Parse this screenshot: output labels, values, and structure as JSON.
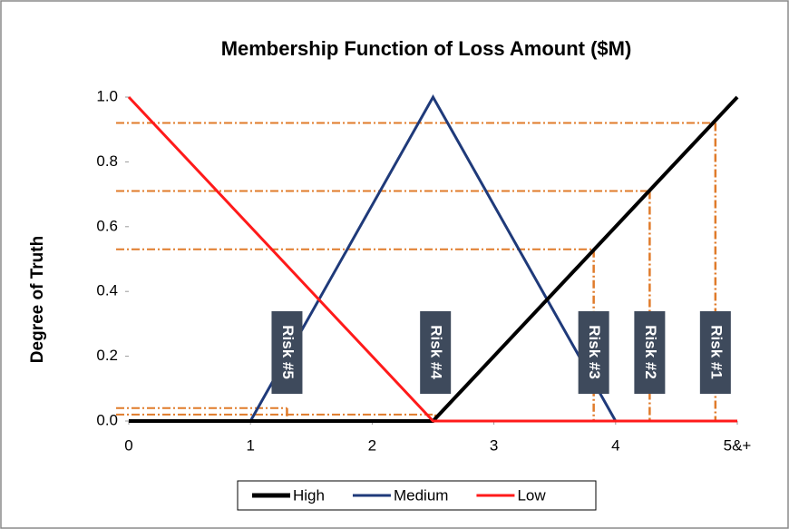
{
  "chart_data": {
    "type": "line",
    "title": "Membership Function of Loss Amount ($M)",
    "ylabel": "Degree of Truth",
    "xlim": [
      0,
      5
    ],
    "ylim": [
      0,
      1
    ],
    "xticks": [
      0,
      1,
      2,
      3,
      4,
      {
        "value": 5,
        "label": "5&+"
      }
    ],
    "yticks": [
      {
        "value": 0,
        "label": "0.0"
      },
      0.2,
      0.4,
      0.6,
      0.8,
      {
        "value": 1,
        "label": "1.0"
      }
    ],
    "series": [
      {
        "name": "High",
        "color": "#000000",
        "x": [
          0,
          2.5,
          5
        ],
        "values": [
          0,
          0,
          1
        ]
      },
      {
        "name": "Medium",
        "color": "#1f3a7a",
        "x": [
          0,
          1,
          2.5,
          4
        ],
        "values": [
          0,
          0,
          1,
          0
        ]
      },
      {
        "name": "Low",
        "color": "#ff1a1a",
        "x": [
          0,
          2.5,
          5
        ],
        "values": [
          1,
          0,
          0
        ]
      }
    ],
    "annotations": [
      {
        "label": "Risk #5",
        "x": 1.3,
        "y": 0.04
      },
      {
        "label": "Risk #4",
        "x": 2.52,
        "y": 0.02
      },
      {
        "label": "Risk #3",
        "x": 3.82,
        "y": 0.53
      },
      {
        "label": "Risk #2",
        "x": 4.28,
        "y": 0.71
      },
      {
        "label": "Risk #1",
        "x": 4.82,
        "y": 0.92
      }
    ],
    "annotation_color": "#e07b2a",
    "legend": "bottom"
  }
}
